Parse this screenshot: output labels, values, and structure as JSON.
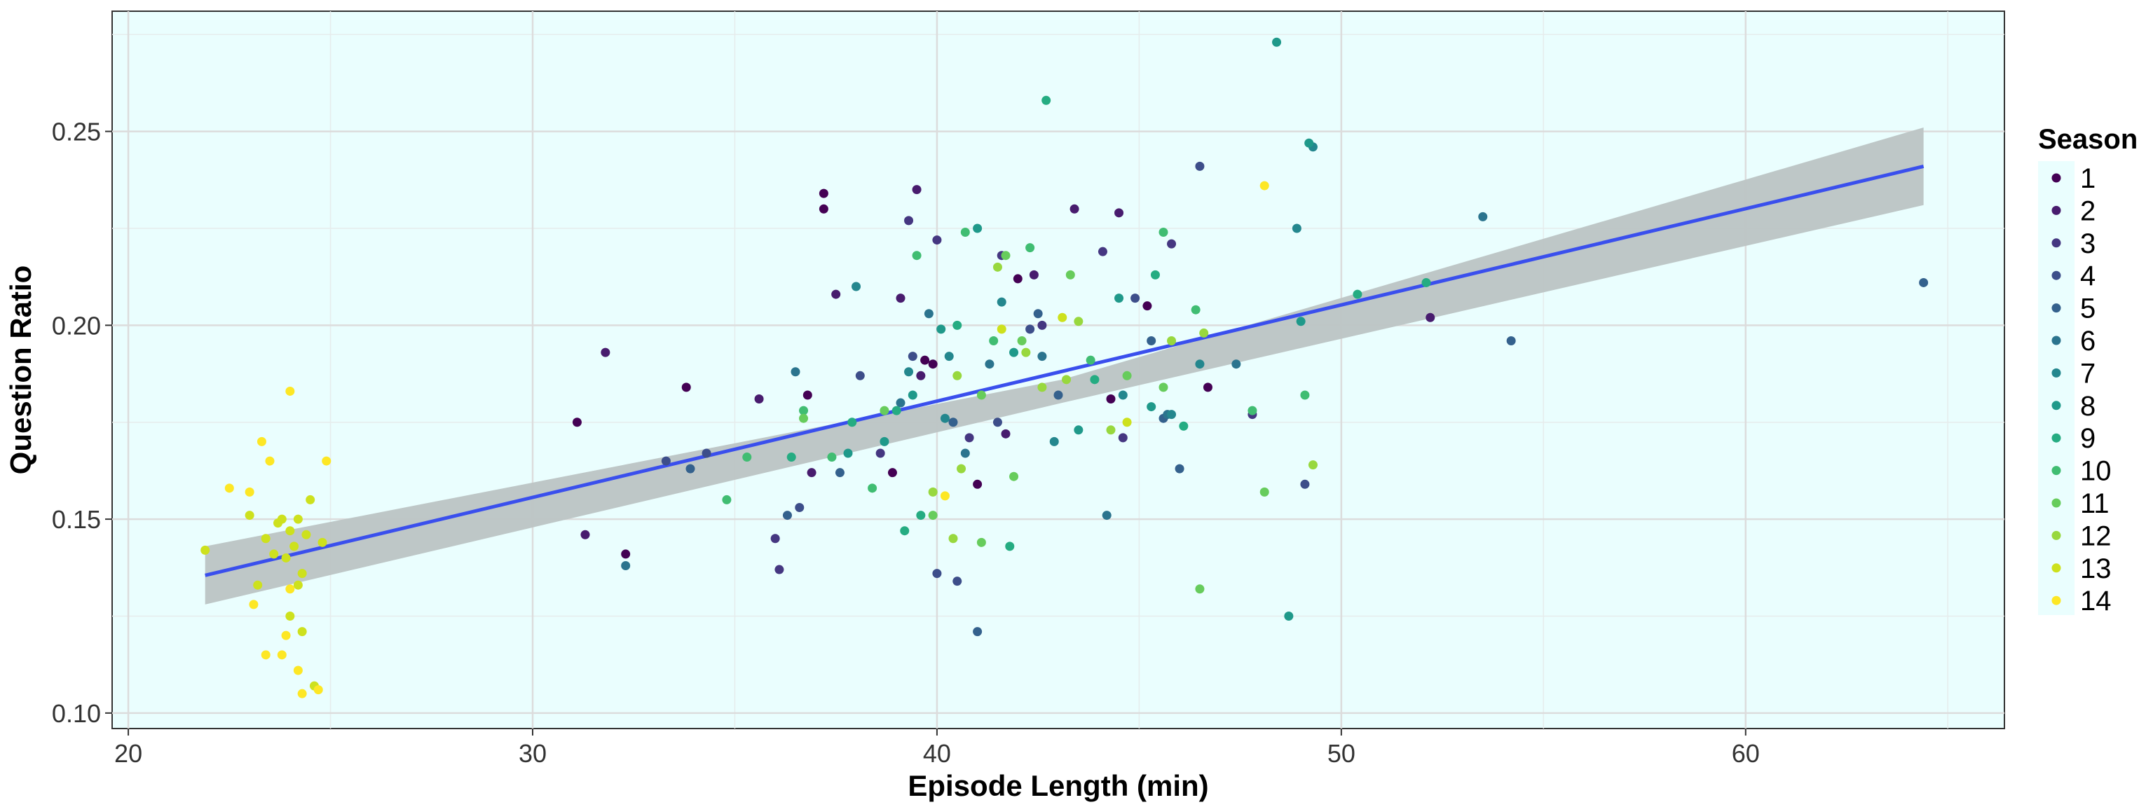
{
  "chart_data": {
    "type": "scatter",
    "title": "",
    "xlabel": "Episode Length (min)",
    "ylabel": "Question Ratio",
    "xlim": [
      19.6,
      66.4
    ],
    "ylim": [
      0.096,
      0.281
    ],
    "x_ticks": [
      20,
      30,
      40,
      50,
      60
    ],
    "y_ticks": [
      0.1,
      0.15,
      0.2,
      0.25
    ],
    "x_tick_labels": [
      "20",
      "30",
      "40",
      "50",
      "60"
    ],
    "y_tick_labels": [
      "0.10",
      "0.15",
      "0.20",
      "0.25"
    ],
    "grid": true,
    "background": "#eafefe",
    "legend": {
      "title": "Season",
      "position": "right",
      "entries": [
        "1",
        "2",
        "3",
        "4",
        "5",
        "6",
        "7",
        "8",
        "9",
        "10",
        "11",
        "12",
        "13",
        "14"
      ]
    },
    "season_colors": {
      "1": "#440154",
      "2": "#481c6e",
      "3": "#453781",
      "4": "#3d4e8a",
      "5": "#34618d",
      "6": "#2b748e",
      "7": "#24878e",
      "8": "#1f998a",
      "9": "#25ac82",
      "10": "#40bd72",
      "11": "#67cc5c",
      "12": "#98d83e",
      "13": "#cde11d",
      "14": "#fde725"
    },
    "trend_line": {
      "x": [
        21.9,
        64.4
      ],
      "y": [
        0.1355,
        0.241
      ],
      "color": "#3a4fed"
    },
    "confidence_band": {
      "x": [
        21.9,
        43.1,
        64.4
      ],
      "lower": [
        0.128,
        0.18,
        0.231
      ],
      "upper": [
        0.143,
        0.186,
        0.251
      ],
      "color": "#bcc4c4"
    },
    "series": [
      {
        "name": "1",
        "points": [
          [
            31.1,
            0.175
          ],
          [
            32.3,
            0.141
          ],
          [
            33.8,
            0.184
          ],
          [
            37.2,
            0.234
          ],
          [
            37.2,
            0.23
          ],
          [
            38.9,
            0.162
          ],
          [
            39.7,
            0.191
          ],
          [
            39.9,
            0.19
          ],
          [
            42.0,
            0.212
          ],
          [
            44.3,
            0.181
          ],
          [
            45.2,
            0.205
          ],
          [
            46.7,
            0.184
          ],
          [
            36.8,
            0.182
          ],
          [
            41.0,
            0.159
          ]
        ]
      },
      {
        "name": "2",
        "points": [
          [
            31.8,
            0.193
          ],
          [
            31.3,
            0.146
          ],
          [
            35.6,
            0.181
          ],
          [
            37.5,
            0.208
          ],
          [
            39.5,
            0.235
          ],
          [
            39.1,
            0.207
          ],
          [
            41.7,
            0.172
          ],
          [
            42.4,
            0.213
          ],
          [
            43.4,
            0.23
          ],
          [
            44.5,
            0.229
          ],
          [
            52.2,
            0.202
          ],
          [
            39.6,
            0.187
          ],
          [
            36.9,
            0.162
          ]
        ]
      },
      {
        "name": "3",
        "points": [
          [
            36.0,
            0.145
          ],
          [
            36.1,
            0.137
          ],
          [
            39.3,
            0.227
          ],
          [
            40.0,
            0.222
          ],
          [
            41.6,
            0.218
          ],
          [
            42.6,
            0.2
          ],
          [
            44.1,
            0.219
          ],
          [
            45.8,
            0.221
          ],
          [
            47.8,
            0.177
          ],
          [
            38.6,
            0.167
          ],
          [
            40.8,
            0.171
          ],
          [
            44.6,
            0.171
          ]
        ]
      },
      {
        "name": "4",
        "points": [
          [
            33.3,
            0.165
          ],
          [
            34.3,
            0.167
          ],
          [
            36.6,
            0.153
          ],
          [
            38.1,
            0.187
          ],
          [
            39.4,
            0.192
          ],
          [
            40.5,
            0.134
          ],
          [
            41.5,
            0.175
          ],
          [
            42.3,
            0.199
          ],
          [
            44.9,
            0.207
          ],
          [
            46.5,
            0.241
          ],
          [
            49.1,
            0.159
          ],
          [
            40.0,
            0.136
          ]
        ]
      },
      {
        "name": "5",
        "points": [
          [
            33.9,
            0.163
          ],
          [
            36.3,
            0.151
          ],
          [
            37.6,
            0.162
          ],
          [
            40.4,
            0.175
          ],
          [
            41.0,
            0.121
          ],
          [
            42.5,
            0.203
          ],
          [
            43.0,
            0.182
          ],
          [
            45.6,
            0.176
          ],
          [
            45.3,
            0.196
          ],
          [
            46.0,
            0.163
          ],
          [
            64.4,
            0.211
          ],
          [
            54.2,
            0.196
          ]
        ]
      },
      {
        "name": "6",
        "points": [
          [
            32.3,
            0.138
          ],
          [
            36.5,
            0.188
          ],
          [
            39.1,
            0.18
          ],
          [
            39.8,
            0.203
          ],
          [
            40.7,
            0.167
          ],
          [
            41.3,
            0.19
          ],
          [
            42.6,
            0.192
          ],
          [
            44.2,
            0.151
          ],
          [
            45.7,
            0.177
          ],
          [
            47.4,
            0.19
          ],
          [
            53.5,
            0.228
          ]
        ]
      },
      {
        "name": "7",
        "points": [
          [
            38.0,
            0.21
          ],
          [
            39.3,
            0.188
          ],
          [
            40.3,
            0.192
          ],
          [
            41.6,
            0.206
          ],
          [
            42.9,
            0.17
          ],
          [
            44.6,
            0.182
          ],
          [
            45.8,
            0.177
          ],
          [
            46.5,
            0.19
          ],
          [
            48.9,
            0.225
          ],
          [
            49.3,
            0.246
          ],
          [
            40.2,
            0.176
          ]
        ]
      },
      {
        "name": "8",
        "points": [
          [
            37.8,
            0.167
          ],
          [
            38.7,
            0.17
          ],
          [
            39.4,
            0.182
          ],
          [
            40.1,
            0.199
          ],
          [
            41.0,
            0.225
          ],
          [
            41.9,
            0.193
          ],
          [
            43.5,
            0.173
          ],
          [
            44.5,
            0.207
          ],
          [
            45.3,
            0.179
          ],
          [
            48.4,
            0.273
          ],
          [
            48.7,
            0.125
          ],
          [
            49.0,
            0.201
          ],
          [
            49.2,
            0.247
          ]
        ]
      },
      {
        "name": "9",
        "points": [
          [
            36.4,
            0.166
          ],
          [
            37.9,
            0.175
          ],
          [
            39.0,
            0.178
          ],
          [
            39.6,
            0.151
          ],
          [
            40.5,
            0.2
          ],
          [
            41.8,
            0.143
          ],
          [
            42.7,
            0.258
          ],
          [
            43.9,
            0.186
          ],
          [
            45.4,
            0.213
          ],
          [
            46.1,
            0.174
          ],
          [
            50.4,
            0.208
          ],
          [
            52.1,
            0.211
          ],
          [
            39.2,
            0.147
          ]
        ]
      },
      {
        "name": "10",
        "points": [
          [
            34.8,
            0.155
          ],
          [
            36.7,
            0.178
          ],
          [
            38.4,
            0.158
          ],
          [
            39.5,
            0.218
          ],
          [
            40.7,
            0.224
          ],
          [
            41.4,
            0.196
          ],
          [
            42.3,
            0.22
          ],
          [
            43.8,
            0.191
          ],
          [
            45.6,
            0.224
          ],
          [
            46.4,
            0.204
          ],
          [
            47.8,
            0.178
          ],
          [
            49.1,
            0.182
          ],
          [
            35.3,
            0.166
          ],
          [
            37.4,
            0.166
          ]
        ]
      },
      {
        "name": "11",
        "points": [
          [
            36.7,
            0.176
          ],
          [
            38.7,
            0.178
          ],
          [
            39.9,
            0.151
          ],
          [
            41.1,
            0.182
          ],
          [
            41.7,
            0.218
          ],
          [
            42.1,
            0.196
          ],
          [
            43.3,
            0.213
          ],
          [
            44.7,
            0.187
          ],
          [
            45.6,
            0.184
          ],
          [
            46.5,
            0.132
          ],
          [
            48.1,
            0.157
          ],
          [
            41.9,
            0.161
          ],
          [
            41.1,
            0.144
          ]
        ]
      },
      {
        "name": "12",
        "points": [
          [
            39.9,
            0.157
          ],
          [
            40.5,
            0.187
          ],
          [
            41.5,
            0.215
          ],
          [
            42.6,
            0.184
          ],
          [
            43.2,
            0.186
          ],
          [
            44.3,
            0.173
          ],
          [
            45.8,
            0.196
          ],
          [
            46.6,
            0.198
          ],
          [
            49.3,
            0.164
          ],
          [
            40.4,
            0.145
          ],
          [
            43.5,
            0.201
          ],
          [
            40.6,
            0.163
          ],
          [
            42.2,
            0.193
          ]
        ]
      },
      {
        "name": "13",
        "points": [
          [
            21.9,
            0.142
          ],
          [
            23.0,
            0.151
          ],
          [
            23.2,
            0.133
          ],
          [
            23.4,
            0.145
          ],
          [
            23.6,
            0.141
          ],
          [
            23.8,
            0.15
          ],
          [
            23.9,
            0.14
          ],
          [
            24.0,
            0.125
          ],
          [
            24.1,
            0.143
          ],
          [
            24.3,
            0.136
          ],
          [
            24.4,
            0.146
          ],
          [
            24.5,
            0.155
          ],
          [
            24.8,
            0.144
          ],
          [
            24.3,
            0.121
          ],
          [
            24.2,
            0.15
          ],
          [
            24.0,
            0.147
          ],
          [
            23.7,
            0.149
          ],
          [
            24.2,
            0.133
          ],
          [
            43.1,
            0.202
          ],
          [
            44.7,
            0.175
          ],
          [
            41.6,
            0.199
          ],
          [
            24.6,
            0.107
          ]
        ]
      },
      {
        "name": "14",
        "points": [
          [
            22.5,
            0.158
          ],
          [
            23.0,
            0.157
          ],
          [
            23.3,
            0.17
          ],
          [
            23.5,
            0.165
          ],
          [
            24.0,
            0.183
          ],
          [
            24.9,
            0.165
          ],
          [
            23.4,
            0.115
          ],
          [
            23.8,
            0.115
          ],
          [
            23.9,
            0.12
          ],
          [
            24.2,
            0.111
          ],
          [
            24.3,
            0.105
          ],
          [
            24.7,
            0.106
          ],
          [
            23.1,
            0.128
          ],
          [
            24.0,
            0.132
          ],
          [
            48.1,
            0.236
          ],
          [
            40.2,
            0.156
          ]
        ]
      }
    ]
  }
}
